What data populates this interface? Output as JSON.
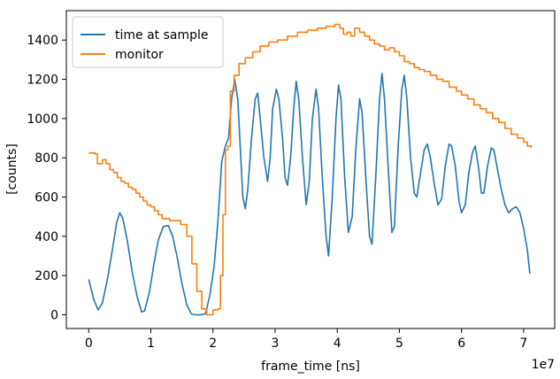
{
  "chart_data": {
    "type": "line",
    "xlabel": "frame_time [ns]",
    "ylabel": "[counts]",
    "x_offset_text": "1e7",
    "x_unit_multiplier": 10000000,
    "xlim": [
      -0.36,
      7.5
    ],
    "ylim": [
      -70,
      1550
    ],
    "x_ticks": [
      0,
      1,
      2,
      3,
      4,
      5,
      6,
      7
    ],
    "x_tick_labels": [
      "0",
      "1",
      "2",
      "3",
      "4",
      "5",
      "6",
      "7"
    ],
    "y_ticks": [
      0,
      200,
      400,
      600,
      800,
      1000,
      1200,
      1400
    ],
    "y_tick_labels": [
      "0",
      "200",
      "400",
      "600",
      "800",
      "1000",
      "1200",
      "1400"
    ],
    "legend_position": "top-left",
    "grid": false,
    "series": [
      {
        "name": "time at sample",
        "color": "#1f77b4",
        "style": "line",
        "points": [
          [
            0.0,
            180
          ],
          [
            0.08,
            80
          ],
          [
            0.15,
            25
          ],
          [
            0.22,
            60
          ],
          [
            0.3,
            180
          ],
          [
            0.38,
            330
          ],
          [
            0.45,
            470
          ],
          [
            0.5,
            520
          ],
          [
            0.55,
            490
          ],
          [
            0.62,
            380
          ],
          [
            0.7,
            220
          ],
          [
            0.78,
            90
          ],
          [
            0.85,
            15
          ],
          [
            0.9,
            20
          ],
          [
            0.98,
            120
          ],
          [
            1.05,
            260
          ],
          [
            1.12,
            380
          ],
          [
            1.2,
            450
          ],
          [
            1.28,
            455
          ],
          [
            1.35,
            400
          ],
          [
            1.42,
            300
          ],
          [
            1.5,
            160
          ],
          [
            1.58,
            50
          ],
          [
            1.65,
            5
          ],
          [
            1.72,
            0
          ],
          [
            1.8,
            0
          ],
          [
            1.88,
            5
          ],
          [
            1.95,
            100
          ],
          [
            2.02,
            250
          ],
          [
            2.08,
            480
          ],
          [
            2.14,
            780
          ],
          [
            2.2,
            860
          ],
          [
            2.25,
            900
          ],
          [
            2.3,
            1100
          ],
          [
            2.35,
            1200
          ],
          [
            2.4,
            1100
          ],
          [
            2.44,
            850
          ],
          [
            2.48,
            600
          ],
          [
            2.52,
            540
          ],
          [
            2.56,
            640
          ],
          [
            2.62,
            900
          ],
          [
            2.68,
            1100
          ],
          [
            2.72,
            1130
          ],
          [
            2.76,
            1000
          ],
          [
            2.82,
            800
          ],
          [
            2.88,
            680
          ],
          [
            2.92,
            800
          ],
          [
            2.96,
            1050
          ],
          [
            3.02,
            1150
          ],
          [
            3.06,
            1100
          ],
          [
            3.12,
            900
          ],
          [
            3.16,
            700
          ],
          [
            3.2,
            660
          ],
          [
            3.25,
            800
          ],
          [
            3.3,
            1050
          ],
          [
            3.34,
            1190
          ],
          [
            3.38,
            1100
          ],
          [
            3.44,
            800
          ],
          [
            3.5,
            560
          ],
          [
            3.55,
            680
          ],
          [
            3.6,
            1000
          ],
          [
            3.66,
            1150
          ],
          [
            3.7,
            1050
          ],
          [
            3.76,
            700
          ],
          [
            3.82,
            400
          ],
          [
            3.86,
            300
          ],
          [
            3.92,
            600
          ],
          [
            3.98,
            1000
          ],
          [
            4.02,
            1170
          ],
          [
            4.06,
            1100
          ],
          [
            4.12,
            700
          ],
          [
            4.18,
            420
          ],
          [
            4.24,
            500
          ],
          [
            4.3,
            850
          ],
          [
            4.36,
            1100
          ],
          [
            4.4,
            1030
          ],
          [
            4.46,
            700
          ],
          [
            4.52,
            400
          ],
          [
            4.56,
            360
          ],
          [
            4.62,
            700
          ],
          [
            4.68,
            1100
          ],
          [
            4.72,
            1230
          ],
          [
            4.76,
            1100
          ],
          [
            4.82,
            750
          ],
          [
            4.88,
            420
          ],
          [
            4.92,
            450
          ],
          [
            4.98,
            850
          ],
          [
            5.04,
            1150
          ],
          [
            5.08,
            1220
          ],
          [
            5.12,
            1100
          ],
          [
            5.18,
            800
          ],
          [
            5.24,
            620
          ],
          [
            5.28,
            600
          ],
          [
            5.34,
            720
          ],
          [
            5.4,
            840
          ],
          [
            5.45,
            870
          ],
          [
            5.5,
            800
          ],
          [
            5.56,
            670
          ],
          [
            5.62,
            560
          ],
          [
            5.68,
            590
          ],
          [
            5.74,
            760
          ],
          [
            5.8,
            870
          ],
          [
            5.84,
            860
          ],
          [
            5.9,
            760
          ],
          [
            5.96,
            580
          ],
          [
            6.0,
            520
          ],
          [
            6.06,
            560
          ],
          [
            6.12,
            730
          ],
          [
            6.18,
            830
          ],
          [
            6.22,
            860
          ],
          [
            6.28,
            740
          ],
          [
            6.32,
            620
          ],
          [
            6.36,
            620
          ],
          [
            6.42,
            760
          ],
          [
            6.48,
            850
          ],
          [
            6.52,
            840
          ],
          [
            6.58,
            740
          ],
          [
            6.64,
            640
          ],
          [
            6.7,
            560
          ],
          [
            6.76,
            520
          ],
          [
            6.82,
            540
          ],
          [
            6.88,
            550
          ],
          [
            6.94,
            520
          ],
          [
            7.0,
            440
          ],
          [
            7.06,
            330
          ],
          [
            7.1,
            210
          ]
        ]
      },
      {
        "name": "monitor",
        "color": "#ff7f0e",
        "style": "step",
        "points": [
          [
            0.0,
            825
          ],
          [
            0.1,
            820
          ],
          [
            0.14,
            770
          ],
          [
            0.22,
            790
          ],
          [
            0.28,
            770
          ],
          [
            0.34,
            740
          ],
          [
            0.4,
            725
          ],
          [
            0.46,
            700
          ],
          [
            0.52,
            680
          ],
          [
            0.58,
            670
          ],
          [
            0.64,
            650
          ],
          [
            0.7,
            640
          ],
          [
            0.76,
            620
          ],
          [
            0.82,
            600
          ],
          [
            0.88,
            580
          ],
          [
            0.94,
            560
          ],
          [
            1.0,
            550
          ],
          [
            1.06,
            530
          ],
          [
            1.12,
            510
          ],
          [
            1.18,
            490
          ],
          [
            1.3,
            480
          ],
          [
            1.48,
            460
          ],
          [
            1.58,
            400
          ],
          [
            1.66,
            260
          ],
          [
            1.74,
            120
          ],
          [
            1.82,
            30
          ],
          [
            1.9,
            0
          ],
          [
            2.0,
            25
          ],
          [
            2.08,
            30
          ],
          [
            2.12,
            200
          ],
          [
            2.16,
            510
          ],
          [
            2.2,
            840
          ],
          [
            2.24,
            860
          ],
          [
            2.28,
            1140
          ],
          [
            2.34,
            1220
          ],
          [
            2.42,
            1280
          ],
          [
            2.52,
            1310
          ],
          [
            2.64,
            1340
          ],
          [
            2.76,
            1370
          ],
          [
            2.9,
            1390
          ],
          [
            3.04,
            1400
          ],
          [
            3.2,
            1420
          ],
          [
            3.36,
            1440
          ],
          [
            3.52,
            1450
          ],
          [
            3.68,
            1460
          ],
          [
            3.82,
            1470
          ],
          [
            3.96,
            1480
          ],
          [
            4.04,
            1460
          ],
          [
            4.1,
            1430
          ],
          [
            4.16,
            1440
          ],
          [
            4.22,
            1420
          ],
          [
            4.28,
            1460
          ],
          [
            4.36,
            1440
          ],
          [
            4.44,
            1420
          ],
          [
            4.52,
            1400
          ],
          [
            4.6,
            1380
          ],
          [
            4.68,
            1370
          ],
          [
            4.76,
            1350
          ],
          [
            4.84,
            1360
          ],
          [
            4.92,
            1340
          ],
          [
            5.0,
            1320
          ],
          [
            5.08,
            1290
          ],
          [
            5.16,
            1280
          ],
          [
            5.24,
            1260
          ],
          [
            5.32,
            1250
          ],
          [
            5.4,
            1240
          ],
          [
            5.5,
            1220
          ],
          [
            5.6,
            1200
          ],
          [
            5.7,
            1190
          ],
          [
            5.8,
            1160
          ],
          [
            5.92,
            1140
          ],
          [
            6.0,
            1120
          ],
          [
            6.1,
            1100
          ],
          [
            6.2,
            1070
          ],
          [
            6.3,
            1050
          ],
          [
            6.4,
            1030
          ],
          [
            6.5,
            1000
          ],
          [
            6.6,
            980
          ],
          [
            6.7,
            950
          ],
          [
            6.8,
            920
          ],
          [
            6.9,
            900
          ],
          [
            7.0,
            880
          ],
          [
            7.06,
            860
          ],
          [
            7.12,
            850
          ]
        ]
      }
    ]
  }
}
